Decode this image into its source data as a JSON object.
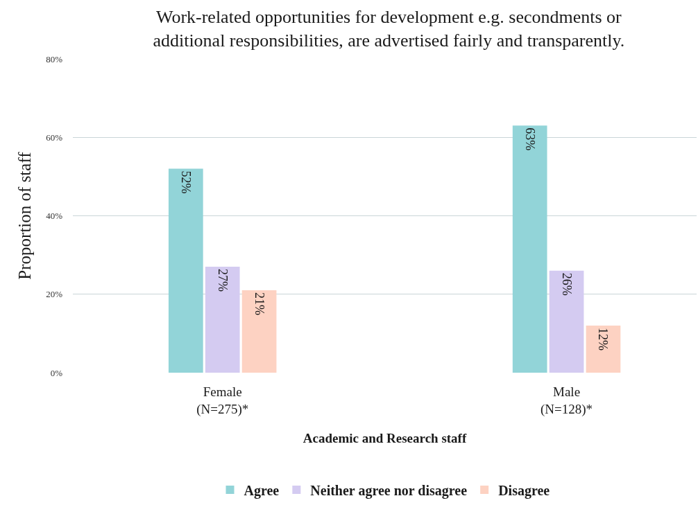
{
  "chart_data": {
    "type": "bar",
    "title": "Work-related opportunities for development e.g. secondments or\nadditional responsibilities, are advertised fairly and transparently.",
    "xlabel": "Academic and Research staff",
    "ylabel": "Proportion of staff",
    "categories": [
      "Female\n(N=275)*",
      "Male\n(N=128)*"
    ],
    "series": [
      {
        "name": "Agree",
        "color": "#92d4d8",
        "values": [
          52,
          63
        ],
        "value_labels": [
          "52%",
          "63%"
        ]
      },
      {
        "name": "Neither agree nor disagree",
        "color": "#d4cbf1",
        "values": [
          27,
          26
        ],
        "value_labels": [
          "27%",
          "26%"
        ]
      },
      {
        "name": "Disagree",
        "color": "#fdd2c2",
        "values": [
          21,
          12
        ],
        "value_labels": [
          "21%",
          "12%"
        ]
      }
    ],
    "ylim": [
      0,
      80
    ],
    "yticks": [
      {
        "value": 0,
        "label": "0%"
      },
      {
        "value": 20,
        "label": "20%"
      },
      {
        "value": 40,
        "label": "40%"
      },
      {
        "value": 60,
        "label": "60%"
      },
      {
        "value": 80,
        "label": "80%"
      }
    ],
    "grid": "y",
    "legend": "bottom"
  }
}
